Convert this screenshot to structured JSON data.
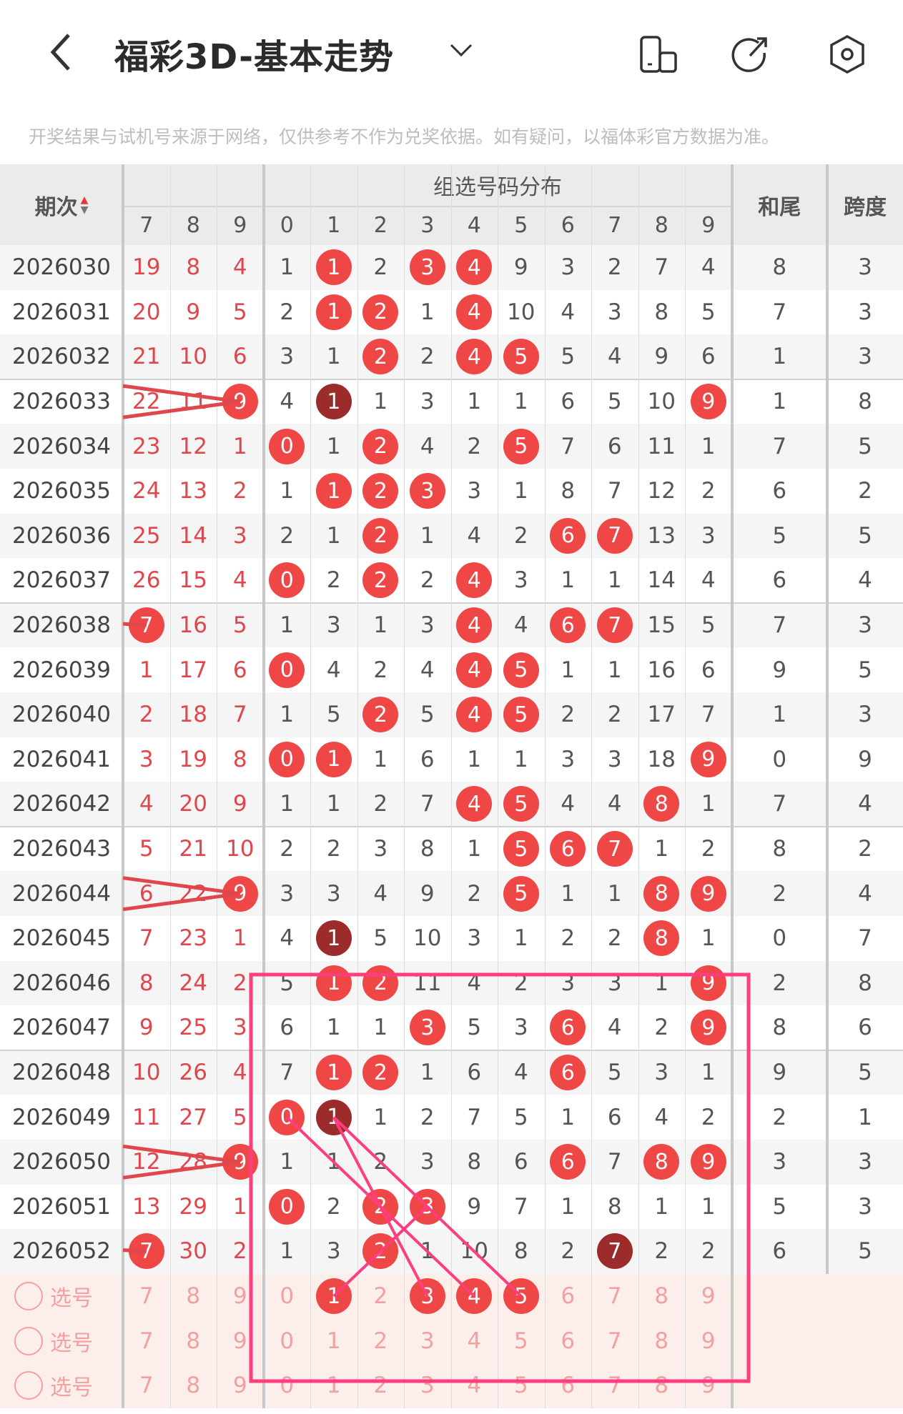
{
  "header": {
    "title": "福彩3D-基本走势",
    "back_icon": "chevron-left-icon",
    "dropdown_icon": "chevron-down-icon",
    "icons": [
      "phone-rotate-icon",
      "share-icon",
      "settings-icon"
    ]
  },
  "disclaimer": "开奖结果与试机号来源于网络，仅供参考不作为兑奖依据。如有疑问，以福体彩官方数据为准。",
  "columns": {
    "period": "期次",
    "group_title": "组选号码分布",
    "hewei": "和尾",
    "kuadu": "跨度",
    "left_digits": [
      "7",
      "8",
      "9"
    ],
    "dist_digits": [
      "0",
      "1",
      "2",
      "3",
      "4",
      "5",
      "6",
      "7",
      "8",
      "9"
    ]
  },
  "colors": {
    "ball": "#ef4646",
    "ball_repeat": "#9c2b2b",
    "miss_text": "#e0474c",
    "annotation": "#ff3d7f"
  },
  "rows": [
    {
      "period": "2026030",
      "left": [
        "19",
        "8",
        "4"
      ],
      "left_hits": [],
      "dist": [
        "1",
        "1",
        "2",
        "3",
        "4",
        "9",
        "3",
        "2",
        "7",
        "4"
      ],
      "hits": [
        1,
        3,
        4
      ],
      "dark": [],
      "hewei": "8",
      "kuadu": "3"
    },
    {
      "period": "2026031",
      "left": [
        "20",
        "9",
        "5"
      ],
      "left_hits": [],
      "dist": [
        "2",
        "1",
        "2",
        "1",
        "4",
        "10",
        "4",
        "3",
        "8",
        "5"
      ],
      "hits": [
        1,
        2,
        4
      ],
      "dark": [],
      "hewei": "7",
      "kuadu": "3"
    },
    {
      "period": "2026032",
      "left": [
        "21",
        "10",
        "6"
      ],
      "left_hits": [],
      "dist": [
        "3",
        "1",
        "2",
        "2",
        "4",
        "5",
        "5",
        "4",
        "9",
        "6"
      ],
      "hits": [
        2,
        4,
        5
      ],
      "dark": [],
      "hewei": "1",
      "kuadu": "3"
    },
    {
      "period": "2026033",
      "left": [
        "22",
        "11",
        "9"
      ],
      "left_hits": [
        2
      ],
      "dist": [
        "4",
        "1",
        "1",
        "3",
        "1",
        "1",
        "6",
        "5",
        "10",
        "9"
      ],
      "hits": [
        1,
        9
      ],
      "dark": [
        1
      ],
      "hewei": "1",
      "kuadu": "8"
    },
    {
      "period": "2026034",
      "left": [
        "23",
        "12",
        "1"
      ],
      "left_hits": [],
      "dist": [
        "0",
        "1",
        "2",
        "4",
        "2",
        "5",
        "7",
        "6",
        "11",
        "1"
      ],
      "hits": [
        0,
        2,
        5
      ],
      "dark": [],
      "hewei": "7",
      "kuadu": "5"
    },
    {
      "period": "2026035",
      "left": [
        "24",
        "13",
        "2"
      ],
      "left_hits": [],
      "dist": [
        "1",
        "1",
        "2",
        "3",
        "3",
        "1",
        "8",
        "7",
        "12",
        "2"
      ],
      "hits": [
        1,
        2,
        3
      ],
      "dark": [],
      "hewei": "6",
      "kuadu": "2"
    },
    {
      "period": "2026036",
      "left": [
        "25",
        "14",
        "3"
      ],
      "left_hits": [],
      "dist": [
        "2",
        "1",
        "2",
        "1",
        "4",
        "2",
        "6",
        "7",
        "13",
        "3"
      ],
      "hits": [
        2,
        6,
        7
      ],
      "dark": [],
      "hewei": "5",
      "kuadu": "5"
    },
    {
      "period": "2026037",
      "left": [
        "26",
        "15",
        "4"
      ],
      "left_hits": [],
      "dist": [
        "0",
        "2",
        "2",
        "2",
        "4",
        "3",
        "1",
        "1",
        "14",
        "4"
      ],
      "hits": [
        0,
        2,
        4
      ],
      "dark": [],
      "hewei": "6",
      "kuadu": "4"
    },
    {
      "period": "2026038",
      "left": [
        "7",
        "16",
        "5"
      ],
      "left_hits": [
        0
      ],
      "dist": [
        "1",
        "3",
        "1",
        "3",
        "4",
        "4",
        "6",
        "7",
        "15",
        "5"
      ],
      "hits": [
        4,
        6,
        7
      ],
      "dark": [],
      "hewei": "7",
      "kuadu": "3"
    },
    {
      "period": "2026039",
      "left": [
        "1",
        "17",
        "6"
      ],
      "left_hits": [],
      "dist": [
        "0",
        "4",
        "2",
        "4",
        "4",
        "5",
        "1",
        "1",
        "16",
        "6"
      ],
      "hits": [
        0,
        4,
        5
      ],
      "dark": [],
      "hewei": "9",
      "kuadu": "5"
    },
    {
      "period": "2026040",
      "left": [
        "2",
        "18",
        "7"
      ],
      "left_hits": [],
      "dist": [
        "1",
        "5",
        "2",
        "5",
        "4",
        "5",
        "2",
        "2",
        "17",
        "7"
      ],
      "hits": [
        2,
        4,
        5
      ],
      "dark": [],
      "hewei": "1",
      "kuadu": "3"
    },
    {
      "period": "2026041",
      "left": [
        "3",
        "19",
        "8"
      ],
      "left_hits": [],
      "dist": [
        "0",
        "1",
        "1",
        "6",
        "1",
        "1",
        "3",
        "3",
        "18",
        "9"
      ],
      "hits": [
        0,
        1,
        9
      ],
      "dark": [],
      "hewei": "0",
      "kuadu": "9"
    },
    {
      "period": "2026042",
      "left": [
        "4",
        "20",
        "9"
      ],
      "left_hits": [],
      "dist": [
        "1",
        "1",
        "2",
        "7",
        "4",
        "5",
        "4",
        "4",
        "8",
        "1"
      ],
      "hits": [
        4,
        5,
        8
      ],
      "dark": [],
      "hewei": "7",
      "kuadu": "4"
    },
    {
      "period": "2026043",
      "left": [
        "5",
        "21",
        "10"
      ],
      "left_hits": [],
      "dist": [
        "2",
        "2",
        "3",
        "8",
        "1",
        "5",
        "6",
        "7",
        "1",
        "2"
      ],
      "hits": [
        5,
        6,
        7
      ],
      "dark": [],
      "hewei": "8",
      "kuadu": "2"
    },
    {
      "period": "2026044",
      "left": [
        "6",
        "22",
        "9"
      ],
      "left_hits": [
        2
      ],
      "dist": [
        "3",
        "3",
        "4",
        "9",
        "2",
        "5",
        "1",
        "1",
        "8",
        "9"
      ],
      "hits": [
        5,
        8,
        9
      ],
      "dark": [],
      "hewei": "2",
      "kuadu": "4"
    },
    {
      "period": "2026045",
      "left": [
        "7",
        "23",
        "1"
      ],
      "left_hits": [],
      "dist": [
        "4",
        "1",
        "5",
        "10",
        "3",
        "1",
        "2",
        "2",
        "8",
        "1"
      ],
      "hits": [
        1,
        8
      ],
      "dark": [
        1
      ],
      "hewei": "0",
      "kuadu": "7"
    },
    {
      "period": "2026046",
      "left": [
        "8",
        "24",
        "2"
      ],
      "left_hits": [],
      "dist": [
        "5",
        "1",
        "2",
        "11",
        "4",
        "2",
        "3",
        "3",
        "1",
        "9"
      ],
      "hits": [
        1,
        2,
        9
      ],
      "dark": [],
      "hewei": "2",
      "kuadu": "8"
    },
    {
      "period": "2026047",
      "left": [
        "9",
        "25",
        "3"
      ],
      "left_hits": [],
      "dist": [
        "6",
        "1",
        "1",
        "3",
        "5",
        "3",
        "6",
        "4",
        "2",
        "9"
      ],
      "hits": [
        3,
        6,
        9
      ],
      "dark": [],
      "hewei": "8",
      "kuadu": "6"
    },
    {
      "period": "2026048",
      "left": [
        "10",
        "26",
        "4"
      ],
      "left_hits": [],
      "dist": [
        "7",
        "1",
        "2",
        "1",
        "6",
        "4",
        "6",
        "5",
        "3",
        "1"
      ],
      "hits": [
        1,
        2,
        6
      ],
      "dark": [],
      "hewei": "9",
      "kuadu": "5"
    },
    {
      "period": "2026049",
      "left": [
        "11",
        "27",
        "5"
      ],
      "left_hits": [],
      "dist": [
        "0",
        "1",
        "1",
        "2",
        "7",
        "5",
        "1",
        "6",
        "4",
        "2"
      ],
      "hits": [
        0,
        1
      ],
      "dark": [
        1
      ],
      "hewei": "2",
      "kuadu": "1"
    },
    {
      "period": "2026050",
      "left": [
        "12",
        "28",
        "9"
      ],
      "left_hits": [
        2
      ],
      "dist": [
        "1",
        "1",
        "2",
        "3",
        "8",
        "6",
        "6",
        "7",
        "8",
        "9"
      ],
      "hits": [
        6,
        8,
        9
      ],
      "dark": [],
      "hewei": "3",
      "kuadu": "3"
    },
    {
      "period": "2026051",
      "left": [
        "13",
        "29",
        "1"
      ],
      "left_hits": [],
      "dist": [
        "0",
        "2",
        "2",
        "3",
        "9",
        "7",
        "1",
        "8",
        "1",
        "1"
      ],
      "hits": [
        0,
        2,
        3
      ],
      "dark": [],
      "hewei": "5",
      "kuadu": "3"
    },
    {
      "period": "2026052",
      "left": [
        "7",
        "30",
        "2"
      ],
      "left_hits": [
        0
      ],
      "dist": [
        "1",
        "3",
        "2",
        "1",
        "10",
        "8",
        "2",
        "7",
        "2",
        "2"
      ],
      "hits": [
        2,
        7
      ],
      "dark": [
        7
      ],
      "hewei": "6",
      "kuadu": "5"
    }
  ],
  "select_rows": [
    {
      "label": "选号",
      "left": [
        "7",
        "8",
        "9"
      ],
      "digits": [
        "0",
        "1",
        "2",
        "3",
        "4",
        "5",
        "6",
        "7",
        "8",
        "9"
      ],
      "selected": [
        1,
        3,
        4,
        5
      ]
    },
    {
      "label": "选号",
      "left": [
        "7",
        "8",
        "9"
      ],
      "digits": [
        "0",
        "1",
        "2",
        "3",
        "4",
        "5",
        "6",
        "7",
        "8",
        "9"
      ],
      "selected": []
    },
    {
      "label": "选号",
      "left": [
        "7",
        "8",
        "9"
      ],
      "digits": [
        "0",
        "1",
        "2",
        "3",
        "4",
        "5",
        "6",
        "7",
        "8",
        "9"
      ],
      "selected": []
    }
  ]
}
